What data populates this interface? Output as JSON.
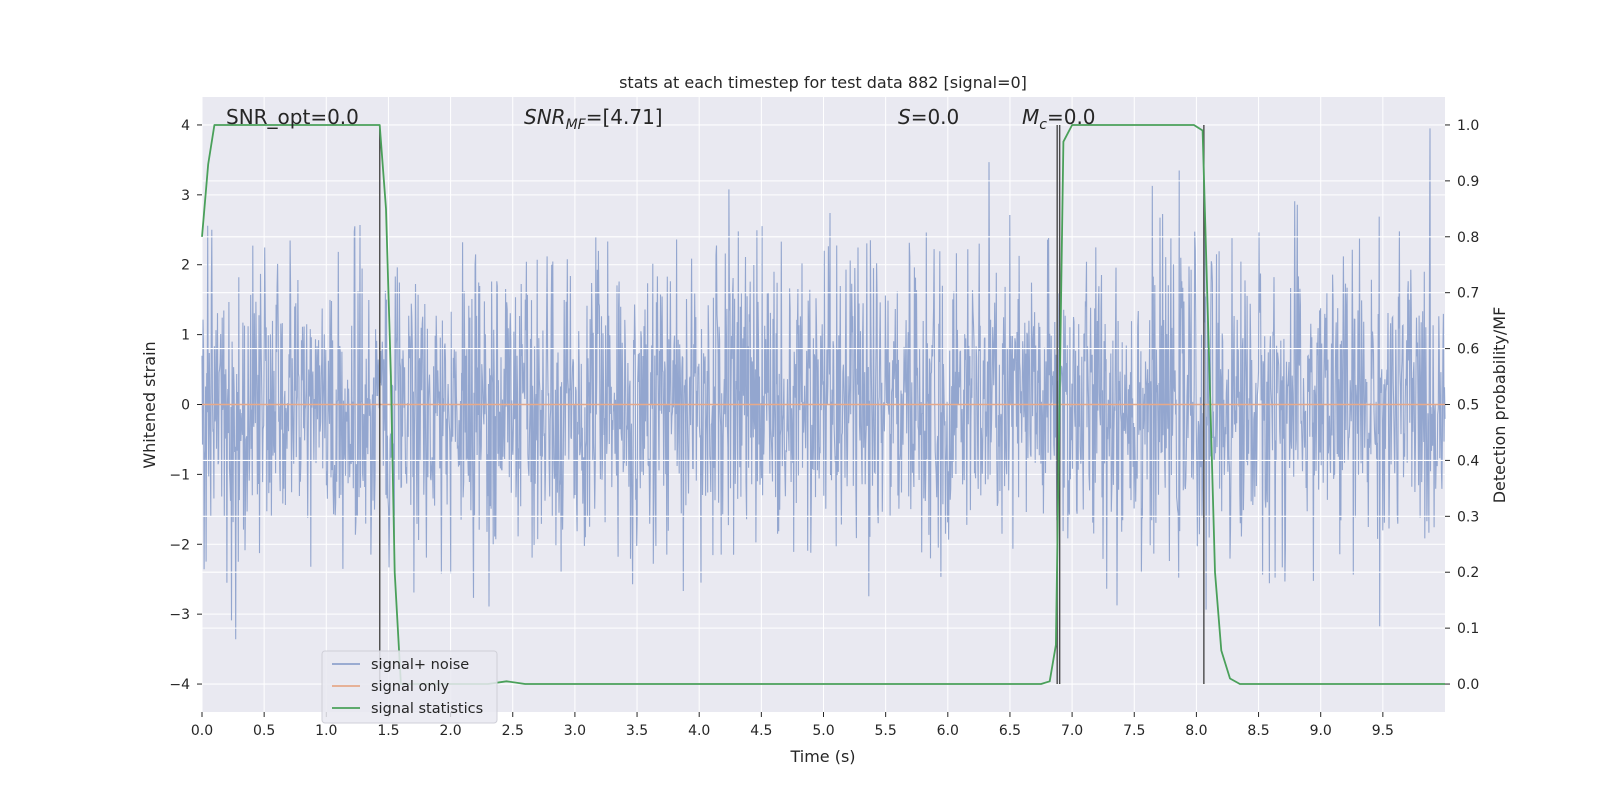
{
  "chart_data": {
    "type": "line",
    "title": "stats at each timestep for test data 882 [signal=0]",
    "xlabel": "Time (s)",
    "ylabel_left": "Whitened strain",
    "ylabel_right": "Detection probability/MF",
    "xlim": [
      0.0,
      10.0
    ],
    "ylim_left": [
      -4.4,
      4.4
    ],
    "ylim_right": [
      -0.05,
      1.05
    ],
    "xticks": [
      0.0,
      0.5,
      1.0,
      1.5,
      2.0,
      2.5,
      3.0,
      3.5,
      4.0,
      4.5,
      5.0,
      5.5,
      6.0,
      6.5,
      7.0,
      7.5,
      8.0,
      8.5,
      9.0,
      9.5
    ],
    "xtick_labels": [
      "0.0",
      "0.5",
      "1.0",
      "1.5",
      "2.0",
      "2.5",
      "3.0",
      "3.5",
      "4.0",
      "4.5",
      "5.0",
      "5.5",
      "6.0",
      "6.5",
      "7.0",
      "7.5",
      "8.0",
      "8.5",
      "9.0",
      "9.5"
    ],
    "yticks_left": [
      4,
      3,
      2,
      1,
      0,
      -1,
      -2,
      -3,
      -4
    ],
    "ytick_labels_left": [
      "4",
      "3",
      "2",
      "1",
      "0",
      "−1",
      "−2",
      "−3",
      "−4"
    ],
    "yticks_right": [
      1.0,
      0.9,
      0.8,
      0.7,
      0.6,
      0.5,
      0.4,
      0.3,
      0.2,
      0.1,
      0.0
    ],
    "ytick_labels_right": [
      "1.0",
      "0.9",
      "0.8",
      "0.7",
      "0.6",
      "0.5",
      "0.4",
      "0.3",
      "0.2",
      "0.1",
      "0.0"
    ],
    "annotations": {
      "snr_opt": "SNR_opt=0.0",
      "snr_mf_main": "SNR",
      "snr_mf_sub": "MF",
      "snr_mf_value": "=[4.71]",
      "s_main": "S",
      "s_value": "=0.0",
      "mc_main": "M",
      "mc_sub": "c",
      "mc_value": "=0.0"
    },
    "series": [
      {
        "name": "signal+ noise",
        "color": "#8ea2cc",
        "axis": "left",
        "style": "dense noise, roughly symmetric, |amplitude| mostly within 3.0, peaks to about 4.0"
      },
      {
        "name": "signal only",
        "color": "#e6a98a",
        "axis": "left",
        "x": [
          0.0,
          10.0
        ],
        "y": [
          0.0,
          0.0
        ]
      },
      {
        "name": "signal statistics",
        "color": "#4aa05a",
        "axis": "right",
        "x": [
          0.0,
          0.05,
          0.1,
          0.2,
          1.3,
          1.43,
          1.48,
          1.52,
          1.55,
          1.6,
          2.3,
          2.45,
          2.6,
          3.0,
          6.75,
          6.82,
          6.87,
          6.93,
          7.0,
          7.5,
          7.98,
          8.05,
          8.1,
          8.15,
          8.2,
          8.27,
          8.35,
          9.0,
          10.0
        ],
        "y": [
          0.8,
          0.93,
          1.0,
          1.0,
          1.0,
          1.0,
          0.85,
          0.55,
          0.2,
          0.0,
          0.0,
          0.005,
          0.0,
          0.0,
          0.0,
          0.005,
          0.07,
          0.97,
          1.0,
          1.0,
          1.0,
          0.99,
          0.6,
          0.2,
          0.06,
          0.01,
          0.0,
          0.0,
          0.0
        ]
      }
    ],
    "vertical_lines_x": [
      1.43,
      6.88,
      6.9,
      8.06
    ],
    "legend_location": "lower left",
    "colors": {
      "plot_background": "#e9e9f1",
      "grid": "#ffffff",
      "vertical_line": "#4a4a4a"
    }
  }
}
